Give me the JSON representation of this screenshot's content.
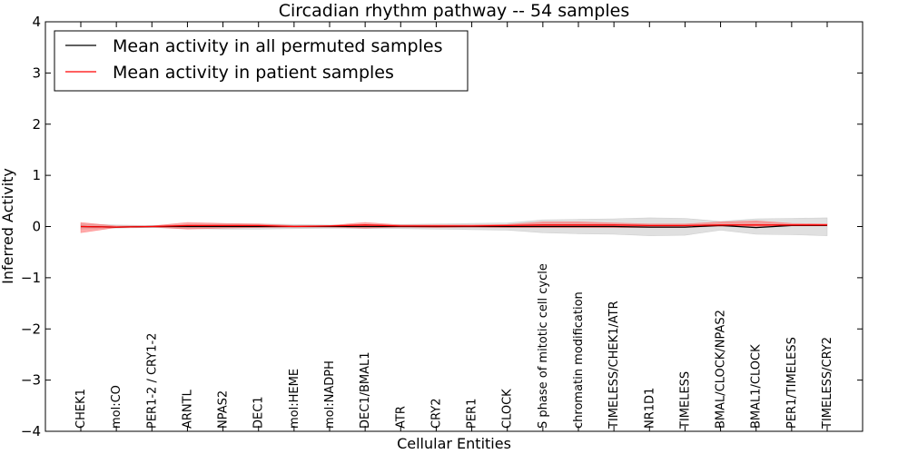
{
  "chart_data": {
    "type": "line",
    "title": "Circadian rhythm pathway -- 54 samples",
    "xlabel": "Cellular Entities",
    "ylabel": "Inferred Activity",
    "ylim": [
      -4,
      4
    ],
    "yticks": [
      -4,
      -3,
      -2,
      -1,
      0,
      1,
      2,
      3,
      4
    ],
    "ytick_labels": [
      "−4",
      "−3",
      "−2",
      "−1",
      "0",
      "1",
      "2",
      "3",
      "4"
    ],
    "grid": false,
    "legend_position": "top-left",
    "categories": [
      "CHEK1",
      "mol:CO",
      "PER1-2 / CRY1-2",
      "ARNTL",
      "NPAS2",
      "DEC1",
      "mol:HEME",
      "mol:NADPH",
      "DEC1/BMAL1",
      "ATR",
      "CRY2",
      "PER1",
      "CLOCK",
      "S phase of mitotic cell cycle",
      "chromatin modification",
      "TIMELESS/CHEK1/ATR",
      "NR1D1",
      "TIMELESS",
      "BMAL/CLOCK/NPAS2",
      "BMAL1/CLOCK",
      "PER1/TIMELESS",
      "TIMELESS/CRY2"
    ],
    "series": [
      {
        "name": "Mean activity in all permuted samples",
        "color": "#000000",
        "values": [
          0.0,
          -0.01,
          0.0,
          0.0,
          0.0,
          0.0,
          0.0,
          0.0,
          0.0,
          0.0,
          0.0,
          0.0,
          0.0,
          0.0,
          0.0,
          0.0,
          -0.01,
          -0.01,
          0.02,
          -0.02,
          0.02,
          0.02
        ],
        "band_low": [
          -0.05,
          -0.03,
          -0.02,
          -0.04,
          -0.05,
          -0.05,
          -0.04,
          -0.03,
          -0.04,
          -0.04,
          -0.05,
          -0.06,
          -0.07,
          -0.12,
          -0.14,
          -0.15,
          -0.18,
          -0.17,
          -0.07,
          -0.15,
          -0.16,
          -0.18
        ],
        "band_high": [
          0.05,
          0.03,
          0.02,
          0.04,
          0.05,
          0.05,
          0.04,
          0.03,
          0.04,
          0.04,
          0.05,
          0.06,
          0.07,
          0.13,
          0.14,
          0.15,
          0.17,
          0.16,
          0.1,
          0.15,
          0.16,
          0.17
        ],
        "band_color": "#bbbbbb"
      },
      {
        "name": "Mean activity in patient samples",
        "color": "#ff0000",
        "values": [
          0.0,
          -0.01,
          0.0,
          0.02,
          0.02,
          0.02,
          0.0,
          0.01,
          0.03,
          0.01,
          0.01,
          0.01,
          0.02,
          0.03,
          0.03,
          0.03,
          0.02,
          0.02,
          0.03,
          0.03,
          0.03,
          0.03
        ],
        "band_low": [
          -0.12,
          -0.02,
          -0.01,
          -0.05,
          -0.03,
          -0.02,
          -0.01,
          -0.01,
          -0.03,
          -0.01,
          -0.02,
          -0.01,
          -0.02,
          -0.02,
          -0.02,
          -0.02,
          -0.02,
          -0.02,
          0.01,
          0.0,
          0.02,
          0.02
        ],
        "band_high": [
          0.08,
          0.01,
          0.01,
          0.08,
          0.06,
          0.05,
          0.02,
          0.02,
          0.08,
          0.03,
          0.03,
          0.03,
          0.04,
          0.09,
          0.09,
          0.07,
          0.05,
          0.05,
          0.09,
          0.11,
          0.06,
          0.05
        ],
        "band_color": "#ff6666"
      }
    ]
  }
}
